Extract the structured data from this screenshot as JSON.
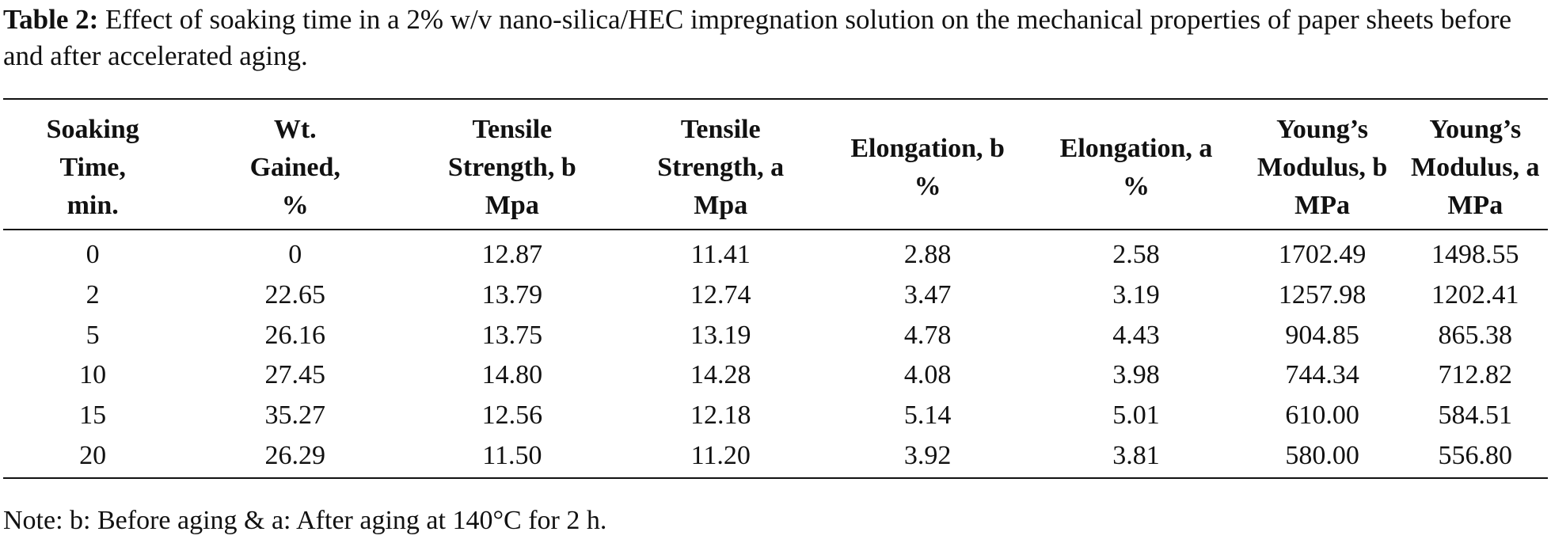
{
  "caption": {
    "label": "Table 2:",
    "text": "Effect of soaking time in a 2% w/v nano-silica/HEC impregnation solution on the mechanical properties of paper sheets before and after accelerated aging."
  },
  "table": {
    "headers": [
      [
        "Soaking",
        "Time,",
        "min."
      ],
      [
        "Wt.",
        "Gained,",
        "%"
      ],
      [
        "Tensile",
        "Strength, b",
        "Mpa"
      ],
      [
        "Tensile",
        "Strength, a",
        "Mpa"
      ],
      [
        "Elongation, b",
        "%"
      ],
      [
        "Elongation, a",
        "%"
      ],
      [
        "Young’s",
        "Modulus, b",
        "MPa"
      ],
      [
        "Young’s",
        "Modulus, a",
        "MPa"
      ]
    ],
    "rows": [
      [
        "0",
        "0",
        "12.87",
        "11.41",
        "2.88",
        "2.58",
        "1702.49",
        "1498.55"
      ],
      [
        "2",
        "22.65",
        "13.79",
        "12.74",
        "3.47",
        "3.19",
        "1257.98",
        "1202.41"
      ],
      [
        "5",
        "26.16",
        "13.75",
        "13.19",
        "4.78",
        "4.43",
        "904.85",
        "865.38"
      ],
      [
        "10",
        "27.45",
        "14.80",
        "14.28",
        "4.08",
        "3.98",
        "744.34",
        "712.82"
      ],
      [
        "15",
        "35.27",
        "12.56",
        "12.18",
        "5.14",
        "5.01",
        "610.00",
        "584.51"
      ],
      [
        "20",
        "26.29",
        "11.50",
        "11.20",
        "3.92",
        "3.81",
        "580.00",
        "556.80"
      ]
    ]
  },
  "note": "Note: b: Before aging & a: After aging at 140°C for 2 h."
}
